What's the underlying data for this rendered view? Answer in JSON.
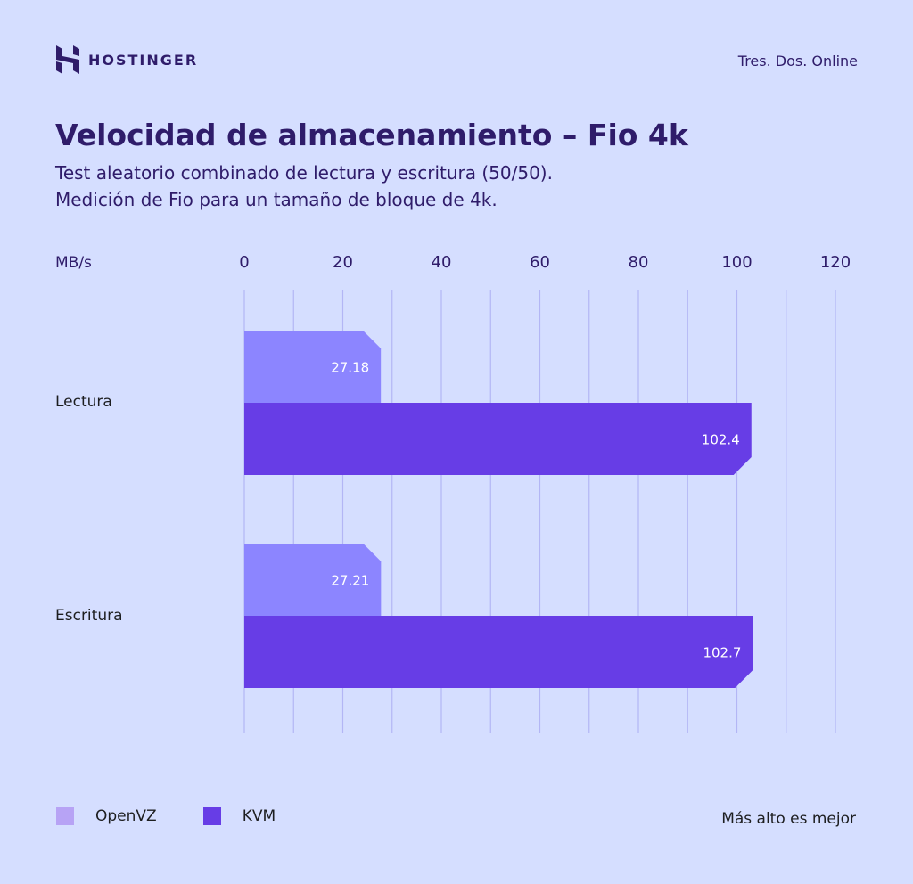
{
  "header": {
    "brand": "HOSTINGER",
    "credit": "Tres. Dos. Online"
  },
  "chart_data": {
    "type": "bar",
    "orientation": "horizontal",
    "title": "Velocidad de almacenamiento – Fio 4k",
    "subtitle": [
      "Test aleatorio combinado de lectura y escritura (50/50).",
      "Medición de Fio para un tamaño de bloque de 4k."
    ],
    "xlabel": "MB/s",
    "xlim": [
      0,
      120
    ],
    "xticks": [
      "0",
      "20",
      "40",
      "60",
      "80",
      "100",
      "120"
    ],
    "grid": true,
    "categories": [
      "Lectura",
      "Escritura"
    ],
    "series": [
      {
        "name": "OpenVZ",
        "values": [
          27.18,
          27.21
        ],
        "labels": [
          "27.18",
          "27.21"
        ],
        "color": "#8c85ff",
        "legend_color": "#b7a3f5"
      },
      {
        "name": "KVM",
        "values": [
          102.4,
          102.7
        ],
        "labels": [
          "102.4",
          "102.7"
        ],
        "color": "#673de6",
        "legend_color": "#673de6"
      }
    ],
    "legend_position": "bottom-left",
    "note": "Más alto es mejor"
  }
}
